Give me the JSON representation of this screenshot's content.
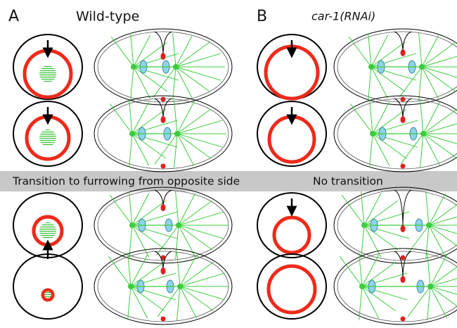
{
  "panels": [
    {
      "label": "A",
      "title": "Wild-type",
      "transition": "Transition to furrowing from opposite side"
    },
    {
      "label": "B",
      "title": "car-1(RNAi)",
      "transition": "No transition"
    }
  ]
}
